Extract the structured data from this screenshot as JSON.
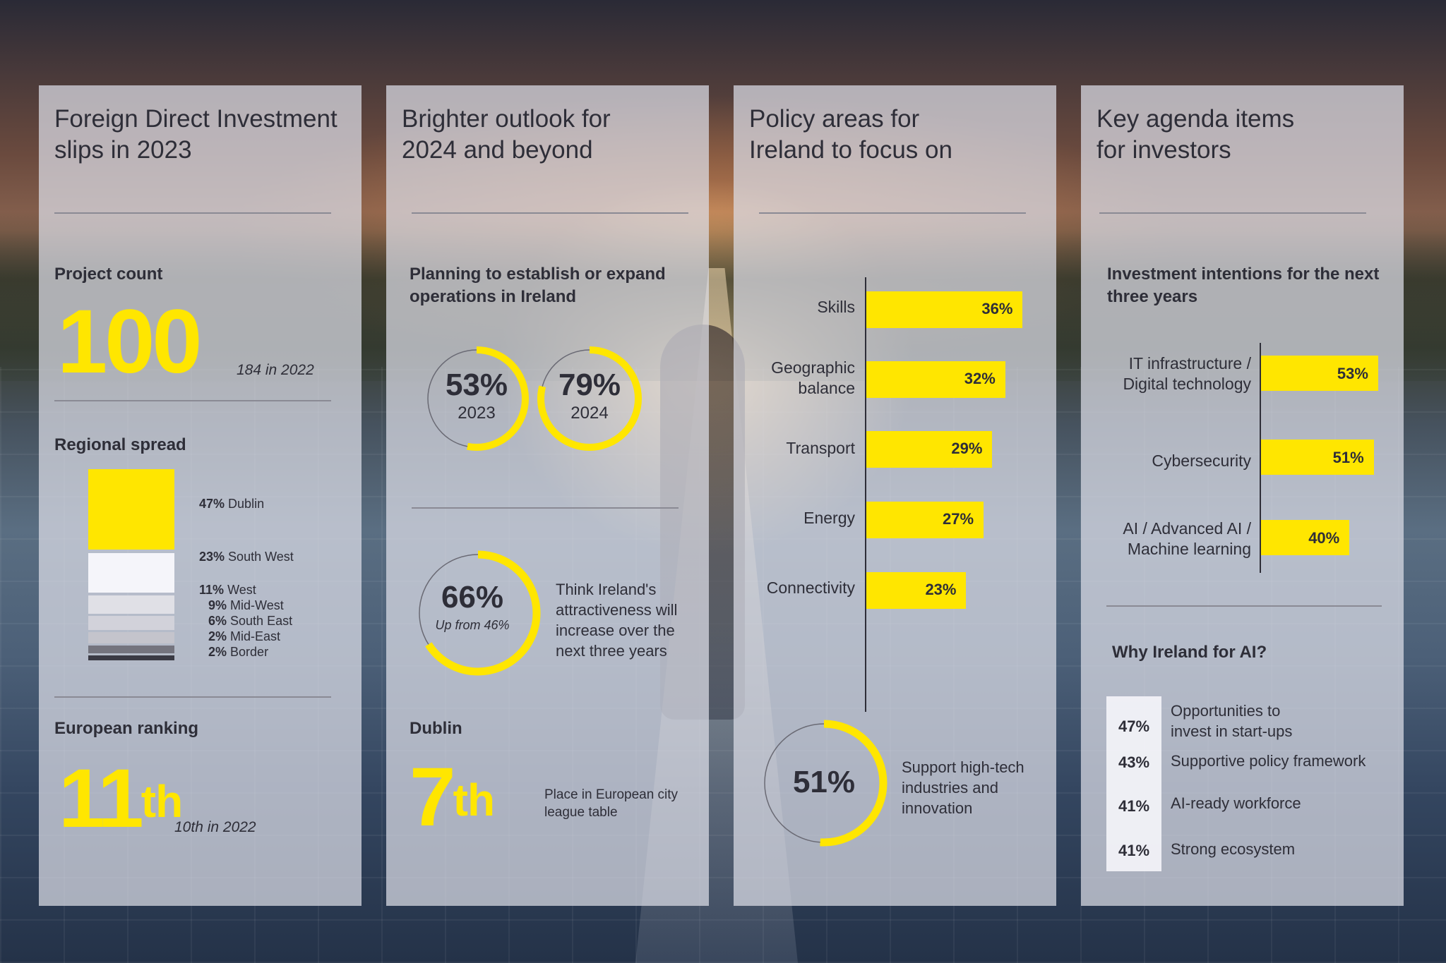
{
  "col1": {
    "title": "Foreign Direct Investment\nslips in 2023",
    "project_count_label": "Project count",
    "project_count_value": "100",
    "project_count_note": "184 in 2022",
    "regional_label": "Regional spread",
    "regions": [
      {
        "pct": "47%",
        "name": "Dublin",
        "value": 47,
        "color": "#ffe600"
      },
      {
        "pct": "23%",
        "name": "South West",
        "value": 23,
        "color": "#f5f5fa"
      },
      {
        "pct": "11%",
        "name": "West",
        "value": 11,
        "color": "#e0e0e6"
      },
      {
        "pct": "9%",
        "name": "Mid-West",
        "value": 9,
        "color": "#d2d2da"
      },
      {
        "pct": "6%",
        "name": "South East",
        "value": 6,
        "color": "#c4c4cc"
      },
      {
        "pct": "2%",
        "name": "Mid-East",
        "value": 2,
        "color": "#74747e"
      },
      {
        "pct": "2%",
        "name": "Border",
        "value": 2,
        "color": "#3a3a44"
      }
    ],
    "ranking_label": "European ranking",
    "ranking_value": "11",
    "ranking_suffix": "th",
    "ranking_note": "10th in 2022"
  },
  "col2": {
    "title": "Brighter outlook for\n2024 and beyond",
    "planning_label": "Planning to establish or expand operations in Ireland",
    "donut_2023_value": 53,
    "donut_2023_pct": "53%",
    "donut_2023_year": "2023",
    "donut_2024_value": 79,
    "donut_2024_pct": "79%",
    "donut_2024_year": "2024",
    "donut_66_value": 66,
    "donut_66_pct": "66%",
    "donut_66_note": "Up from 46%",
    "attract_text": "Think Ireland's attractiveness will increase over the next three years",
    "dublin_label": "Dublin",
    "dublin_value": "7",
    "dublin_suffix": "th",
    "dublin_note": "Place in European city league table"
  },
  "col3": {
    "title": "Policy areas for\nIreland to focus on",
    "chart_data": {
      "type": "bar",
      "orientation": "horizontal",
      "categories": [
        "Skills",
        "Geographic balance",
        "Transport",
        "Energy",
        "Connectivity"
      ],
      "values": [
        36,
        32,
        29,
        27,
        23
      ],
      "labels": [
        "36%",
        "32%",
        "29%",
        "27%",
        "23%"
      ]
    },
    "bar_label_1": "Skills",
    "bar_label_2": "Geographic\nbalance",
    "bar_label_3": "Transport",
    "bar_label_4": "Energy",
    "bar_label_5": "Connectivity",
    "donut_51_value": 51,
    "donut_51_pct": "51%",
    "support_text": "Support high-tech industries and innovation"
  },
  "col4": {
    "title": "Key agenda items\nfor investors",
    "intent_label": "Investment intentions for the next three years",
    "chart_data": {
      "type": "bar",
      "orientation": "horizontal",
      "categories": [
        "IT infrastructure / Digital technology",
        "Cybersecurity",
        "AI / Advanced AI / Machine learning"
      ],
      "values": [
        53,
        51,
        40
      ],
      "labels": [
        "53%",
        "51%",
        "40%"
      ]
    },
    "bar_label_1": "IT infrastructure /\nDigital technology",
    "bar_label_2": "Cybersecurity",
    "bar_label_3": "AI / Advanced AI /\nMachine learning",
    "why_label": "Why Ireland for AI?",
    "why_items": [
      {
        "pct": "47%",
        "text": "Opportunities to\ninvest in start-ups"
      },
      {
        "pct": "43%",
        "text": "Supportive policy framework"
      },
      {
        "pct": "41%",
        "text": "AI-ready workforce"
      },
      {
        "pct": "41%",
        "text": "Strong ecosystem"
      }
    ]
  }
}
